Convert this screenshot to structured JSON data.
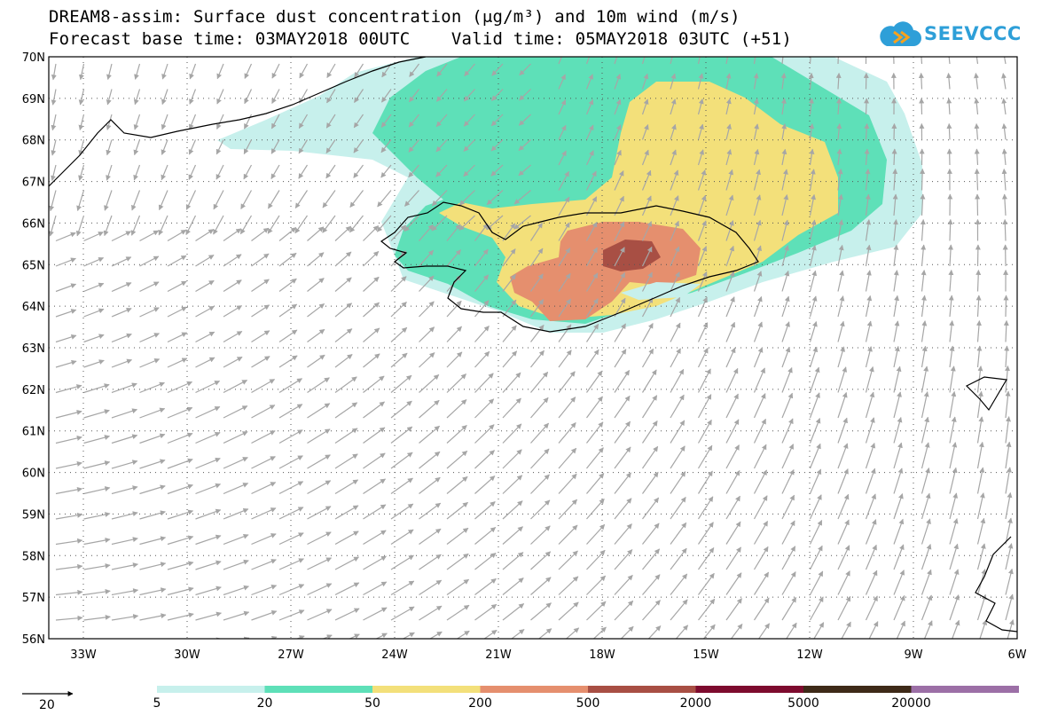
{
  "title": {
    "line1": "DREAM8-assim: Surface dust concentration (μg/m³) and 10m wind (m/s)",
    "line2": "Forecast base time: 03MAY2018 00UTC    Valid time: 05MAY2018 03UTC (+51)"
  },
  "logo": {
    "text": "SEEVCCC",
    "icon": "cloud-icon",
    "color": "#2e9fd8"
  },
  "map": {
    "lat_labels": [
      "70N",
      "69N",
      "68N",
      "67N",
      "66N",
      "65N",
      "64N",
      "63N",
      "62N",
      "61N",
      "60N",
      "59N",
      "58N",
      "57N",
      "56N"
    ],
    "lon_labels": [
      "33W",
      "30W",
      "27W",
      "24W",
      "21W",
      "18W",
      "15W",
      "12W",
      "9W",
      "6W"
    ],
    "lat_range": [
      56,
      70
    ],
    "lon_range": [
      -34.0,
      -6.0
    ],
    "grid": "dotted",
    "wind_vector_color": "#a6a6a6",
    "coastline_color": "#000000"
  },
  "legend": {
    "wind_reference": {
      "value": "20",
      "units": "m/s",
      "icon": "arrow-right-icon"
    },
    "levels": [
      "5",
      "20",
      "50",
      "200",
      "500",
      "2000",
      "5000",
      "20000"
    ],
    "colors": [
      "#c7f0ec",
      "#5ee0b8",
      "#f3e07a",
      "#e58f6e",
      "#a84f44",
      "#7d0b2e",
      "#3e2a18",
      "#9c6fa6"
    ]
  }
}
